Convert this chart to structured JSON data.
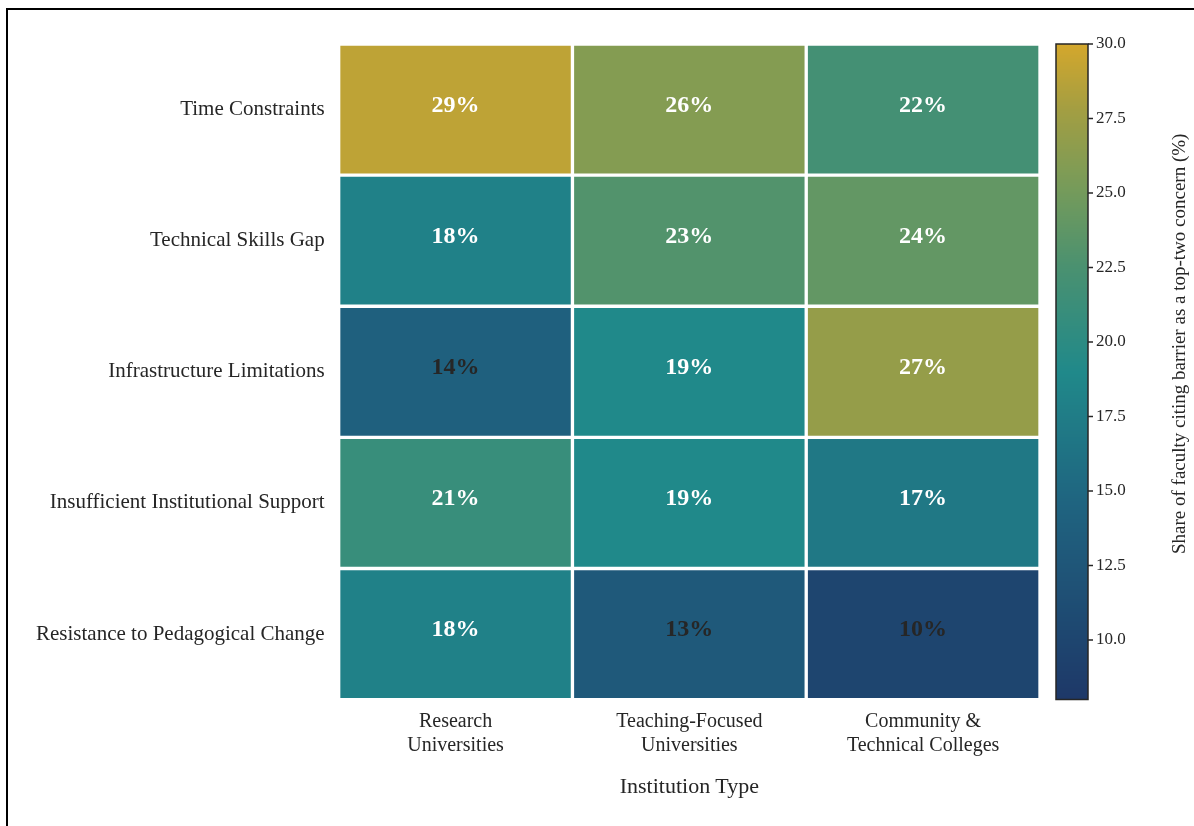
{
  "chart_data": {
    "type": "heatmap",
    "categories": [
      "Research Universities",
      "Teaching-Focused Universities",
      "Community & Technical Colleges"
    ],
    "y_categories": [
      "Time Constraints",
      "Technical Skills Gap",
      "Infrastructure Limitations",
      "Insufficient Institutional Support",
      "Resistance to Pedagogical Change"
    ],
    "cells": [
      [
        29,
        26,
        22
      ],
      [
        18,
        23,
        24
      ],
      [
        14,
        19,
        27
      ],
      [
        21,
        19,
        17
      ],
      [
        18,
        13,
        10
      ]
    ],
    "cell_labels": [
      [
        "29%",
        "26%",
        "22%"
      ],
      [
        "18%",
        "23%",
        "24%"
      ],
      [
        "14%",
        "19%",
        "27%"
      ],
      [
        "21%",
        "19%",
        "17%"
      ],
      [
        "18%",
        "13%",
        "10%"
      ]
    ],
    "xlabel": "Institution Type",
    "clabel": "Share of faculty citing barrier as a top-two concern (%)",
    "clim": [
      8,
      30
    ],
    "cticks": [
      {
        "value": 10,
        "label": "10.0"
      },
      {
        "value": 12.5,
        "label": "12.5"
      },
      {
        "value": 15,
        "label": "15.0"
      },
      {
        "value": 17.5,
        "label": "17.5"
      },
      {
        "value": 20,
        "label": "20.0"
      },
      {
        "value": 22.5,
        "label": "22.5"
      },
      {
        "value": 25,
        "label": "25.0"
      },
      {
        "value": 27.5,
        "label": "27.5"
      },
      {
        "value": 30,
        "label": "30.0"
      }
    ]
  }
}
